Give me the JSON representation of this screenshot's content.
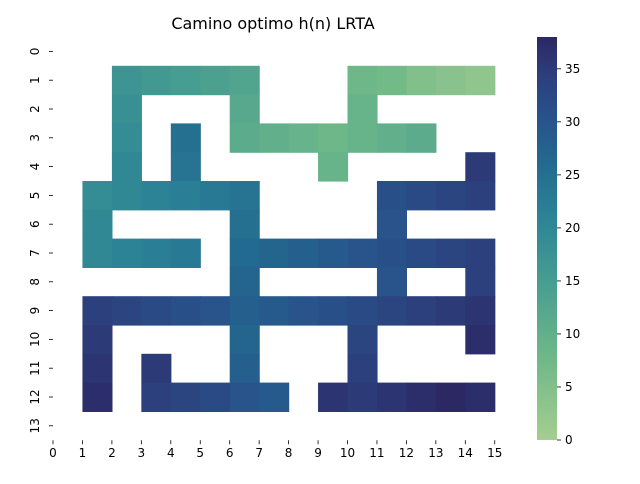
{
  "chart_data": {
    "type": "heatmap",
    "title": "Camino optimo h(n) LRTA",
    "xlabel": "",
    "ylabel": "",
    "x_ticks": [
      "0",
      "1",
      "2",
      "3",
      "4",
      "5",
      "6",
      "7",
      "8",
      "9",
      "10",
      "11",
      "12",
      "13",
      "14",
      "15"
    ],
    "y_ticks": [
      "0",
      "1",
      "2",
      "3",
      "4",
      "5",
      "6",
      "7",
      "8",
      "9",
      "10",
      "11",
      "12",
      "13"
    ],
    "colormap": "crest",
    "vmin": 0,
    "vmax": 38,
    "colorbar_ticks": [
      0,
      5,
      10,
      15,
      20,
      25,
      30,
      35
    ],
    "rows": 14,
    "cols": 16,
    "values": [
      [
        null,
        null,
        null,
        null,
        null,
        null,
        null,
        null,
        null,
        null,
        null,
        null,
        null,
        null,
        null,
        null
      ],
      [
        null,
        null,
        17,
        16,
        15,
        14,
        13,
        null,
        null,
        null,
        8,
        7,
        5,
        4,
        3,
        null
      ],
      [
        null,
        null,
        18,
        null,
        null,
        null,
        12,
        null,
        null,
        null,
        9,
        null,
        null,
        null,
        null,
        null
      ],
      [
        null,
        null,
        19,
        null,
        25,
        null,
        11,
        10,
        9,
        8,
        9,
        10,
        11,
        null,
        null,
        null
      ],
      [
        null,
        null,
        20,
        null,
        24,
        null,
        null,
        null,
        null,
        9,
        null,
        null,
        null,
        null,
        35,
        null
      ],
      [
        null,
        19,
        20,
        21,
        22,
        23,
        24,
        null,
        null,
        null,
        null,
        31,
        32,
        33,
        34,
        null
      ],
      [
        null,
        20,
        null,
        null,
        null,
        null,
        25,
        null,
        null,
        null,
        null,
        30,
        null,
        null,
        null,
        null
      ],
      [
        null,
        20,
        21,
        22,
        23,
        null,
        26,
        27,
        28,
        29,
        30,
        31,
        32,
        33,
        34,
        null
      ],
      [
        null,
        null,
        null,
        null,
        null,
        null,
        27,
        null,
        null,
        null,
        null,
        30,
        null,
        null,
        34,
        null
      ],
      [
        null,
        34,
        33,
        32,
        31,
        30,
        28,
        29,
        30,
        31,
        32,
        33,
        34,
        35,
        36,
        null
      ],
      [
        null,
        35,
        null,
        null,
        null,
        null,
        27,
        null,
        null,
        null,
        33,
        null,
        null,
        null,
        37,
        null
      ],
      [
        null,
        36,
        null,
        35,
        null,
        null,
        28,
        null,
        null,
        null,
        34,
        null,
        null,
        null,
        null,
        null
      ],
      [
        null,
        37,
        null,
        34,
        33,
        32,
        30,
        29,
        null,
        36,
        35,
        36,
        37,
        38,
        37,
        null
      ],
      [
        null,
        null,
        null,
        null,
        null,
        null,
        null,
        null,
        null,
        null,
        null,
        null,
        null,
        null,
        null,
        null
      ]
    ]
  }
}
